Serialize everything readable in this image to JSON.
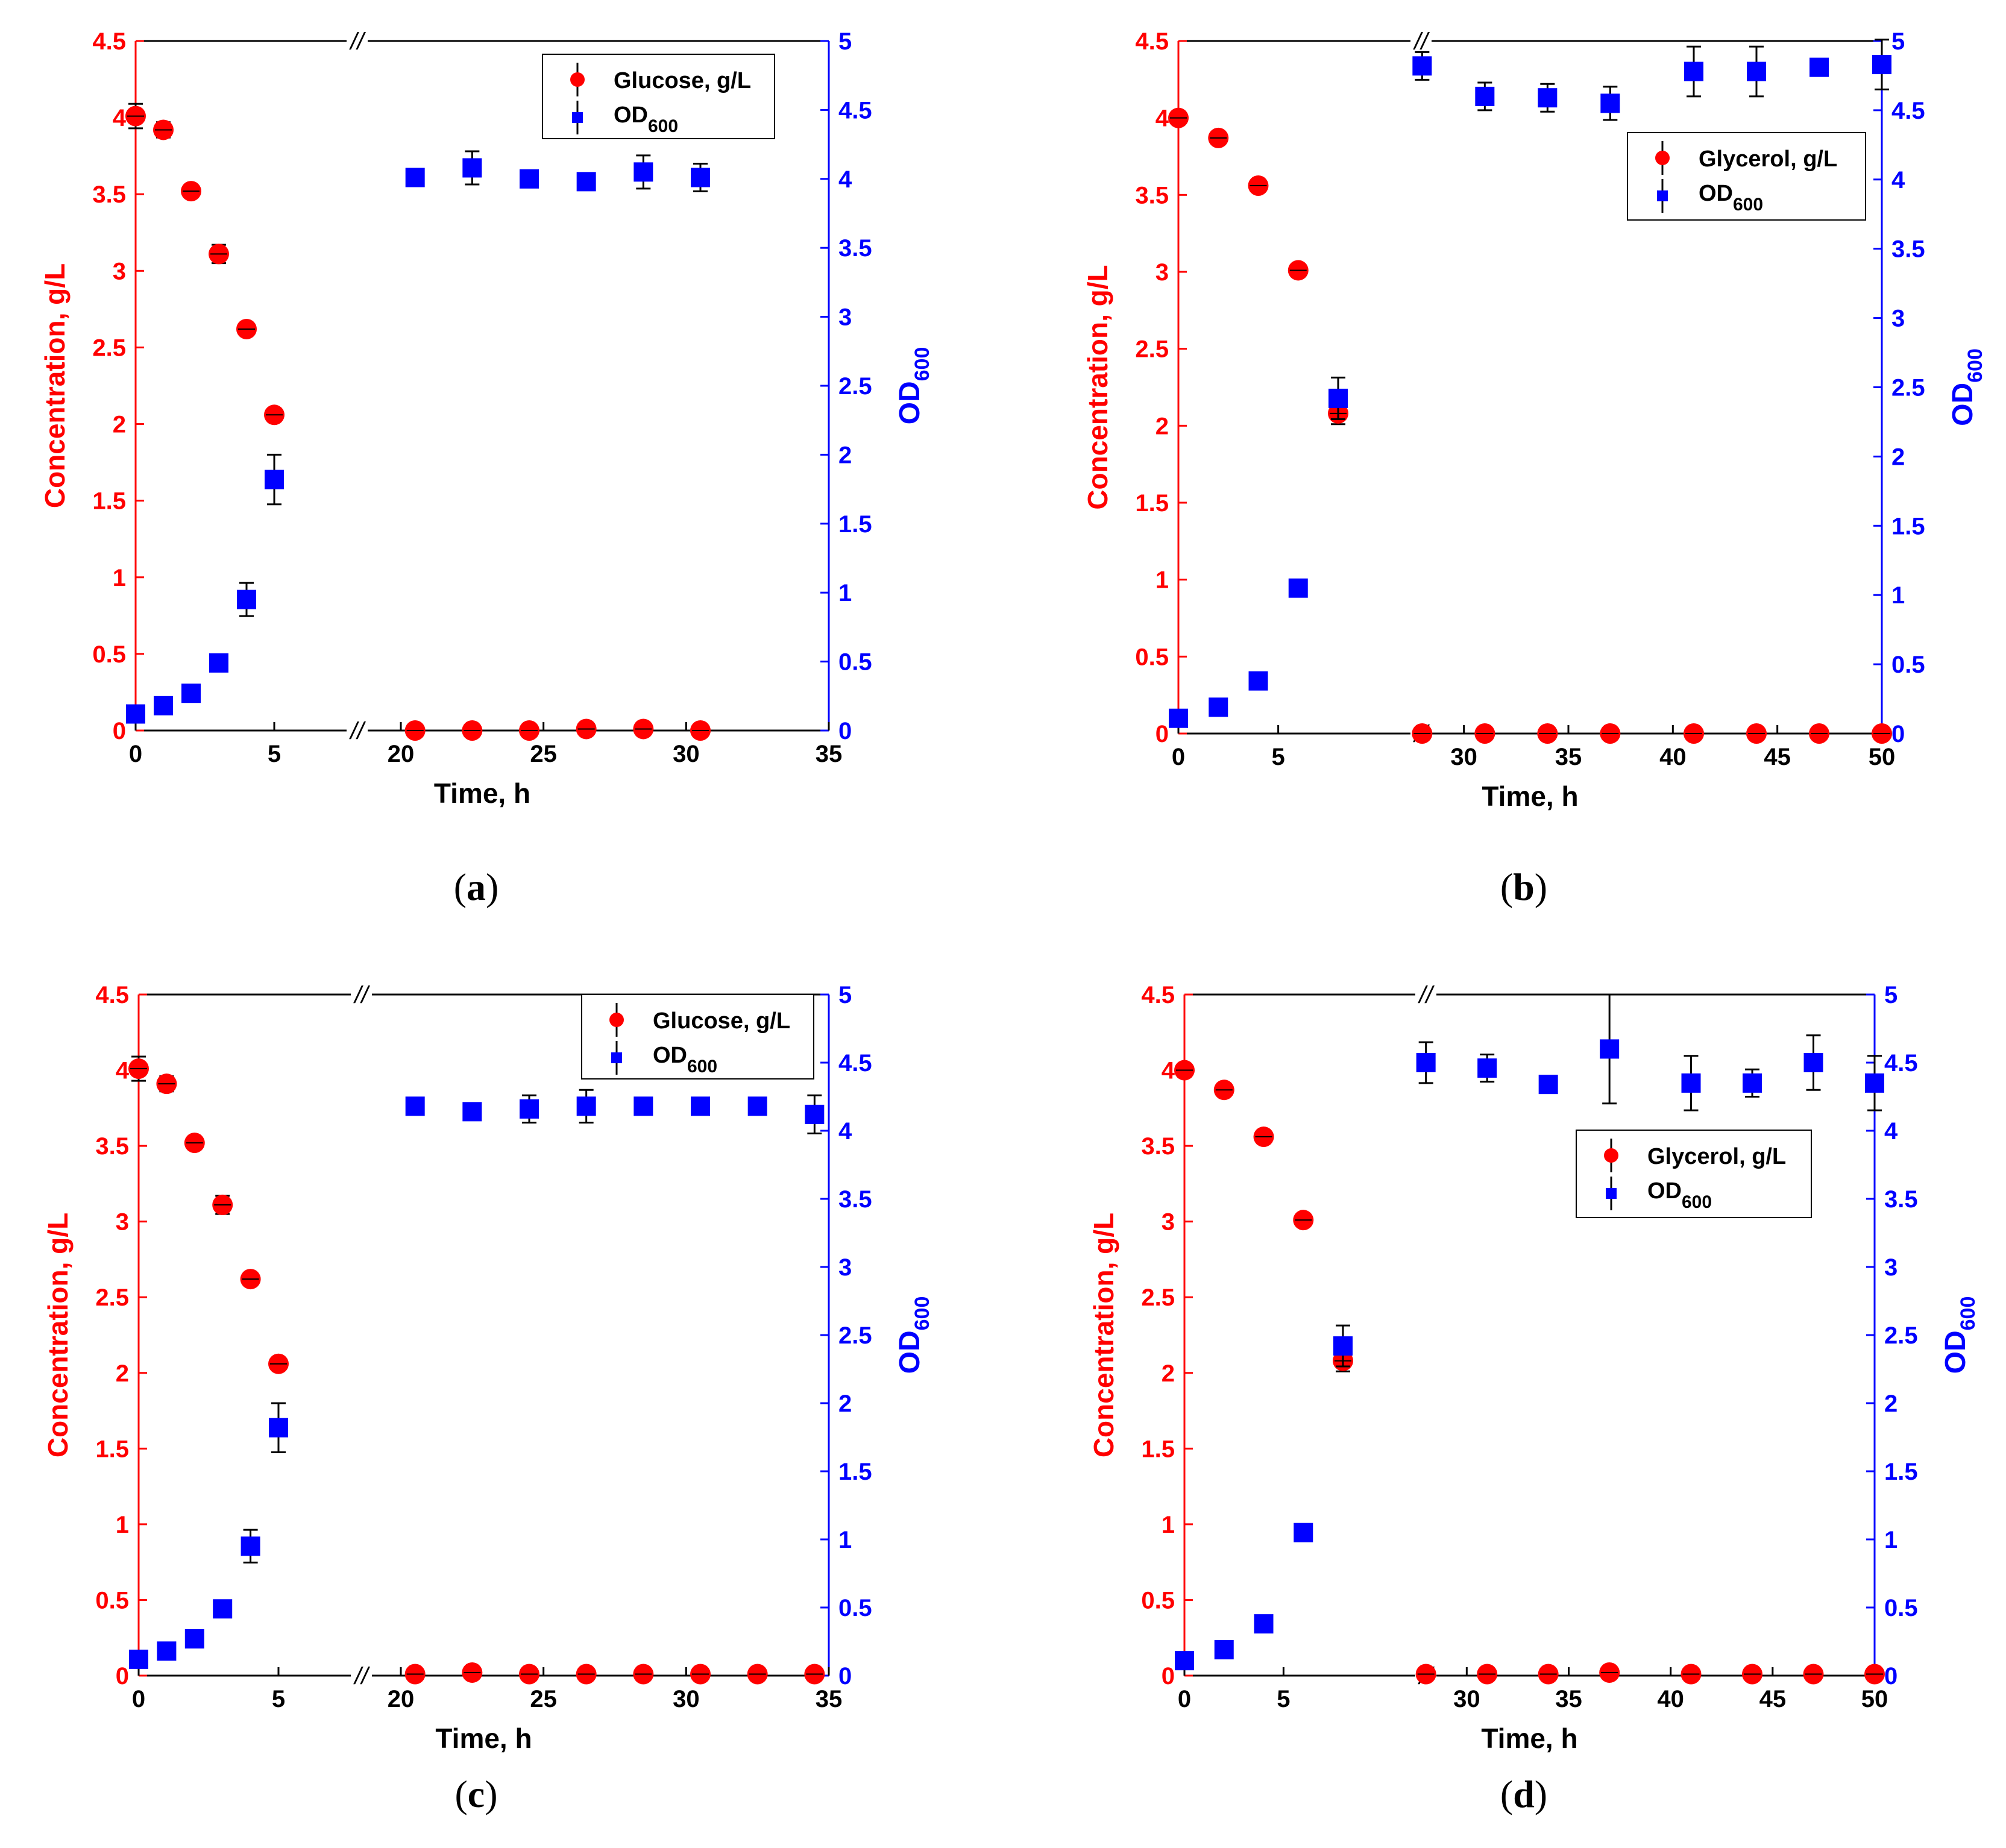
{
  "figure": {
    "break_mark": "//",
    "colors": {
      "concentration": "#ff0000",
      "od": "#0000ff",
      "axis": "#000000"
    }
  },
  "chart_data": [
    {
      "panel": "a",
      "type": "scatter",
      "xlabel": "Time, h",
      "ylabel_left": "Concentration, g/L",
      "ylabel_right_main": "OD",
      "ylabel_right_sub": "600",
      "x_ticks": [
        0,
        5,
        20,
        25,
        30,
        35
      ],
      "x_segments": [
        [
          0,
          5
        ],
        [
          20,
          35
        ]
      ],
      "left_ylim": [
        0,
        4.5
      ],
      "left_ticks": [
        0,
        0.5,
        1,
        1.5,
        2,
        2.5,
        3,
        3.5,
        4,
        4.5
      ],
      "right_ylim": [
        0,
        5
      ],
      "right_ticks": [
        0,
        0.5,
        1,
        1.5,
        2,
        2.5,
        3,
        3.5,
        4,
        4.5,
        5
      ],
      "legend_loc": "top-right",
      "series": [
        {
          "name": "Glucose, g/L",
          "legend_label": "Glucose, g/L",
          "axis": "left",
          "marker": "circle",
          "color": "#ff0000",
          "x": [
            0,
            1,
            2,
            3,
            4,
            5,
            20.5,
            22.5,
            24.5,
            26.5,
            28.5,
            30.5
          ],
          "y": [
            4.01,
            3.92,
            3.52,
            3.11,
            2.62,
            2.06,
            0.0,
            0.0,
            0.0,
            0.01,
            0.01,
            0.0
          ],
          "err": [
            0.08,
            0.05,
            0.04,
            0.06,
            0.04,
            0.03,
            0,
            0,
            0,
            0,
            0,
            0
          ]
        },
        {
          "name": "OD600",
          "legend_main": "OD",
          "legend_sub": "600",
          "axis": "right",
          "marker": "square",
          "color": "#0000ff",
          "x": [
            0,
            1,
            2,
            3,
            4,
            5,
            20.5,
            22.5,
            24.5,
            26.5,
            28.5,
            30.5
          ],
          "y": [
            0.12,
            0.18,
            0.27,
            0.49,
            0.95,
            1.82,
            4.01,
            4.08,
            4.0,
            3.98,
            4.05,
            4.01
          ],
          "err": [
            0.02,
            0.02,
            0.02,
            0.02,
            0.12,
            0.18,
            0.04,
            0.12,
            0.03,
            0.03,
            0.12,
            0.1
          ]
        }
      ]
    },
    {
      "panel": "b",
      "type": "scatter",
      "xlabel": "Time, h",
      "ylabel_left": "Concentration, g/L",
      "ylabel_right_main": "OD",
      "ylabel_right_sub": "600",
      "x_ticks": [
        0,
        5,
        30,
        35,
        40,
        45,
        50
      ],
      "x_segments": [
        [
          0,
          8
        ],
        [
          26,
          50
        ]
      ],
      "left_ylim": [
        0,
        4.5
      ],
      "left_ticks": [
        0,
        0.5,
        1,
        1.5,
        2,
        2.5,
        3,
        3.5,
        4,
        4.5
      ],
      "right_ylim": [
        0,
        5
      ],
      "right_ticks": [
        0,
        0.5,
        1,
        1.5,
        2,
        2.5,
        3,
        3.5,
        4,
        4.5,
        5
      ],
      "legend_loc": "upper-right",
      "series": [
        {
          "name": "Glycerol, g/L",
          "legend_label": "Glycerol, g/L",
          "axis": "left",
          "marker": "circle",
          "color": "#ff0000",
          "x": [
            0,
            2,
            4,
            6,
            8,
            28,
            31,
            34,
            37,
            41,
            44,
            47,
            50
          ],
          "y": [
            4.0,
            3.87,
            3.56,
            3.01,
            2.08,
            0.0,
            0.0,
            0.0,
            0.0,
            0.0,
            0.0,
            0.0,
            0.0
          ],
          "err": [
            0.02,
            0.02,
            0.03,
            0.03,
            0.07,
            0,
            0,
            0,
            0,
            0,
            0,
            0,
            0
          ]
        },
        {
          "name": "OD600",
          "legend_main": "OD",
          "legend_sub": "600",
          "axis": "right",
          "marker": "square",
          "color": "#0000ff",
          "x": [
            0,
            2,
            4,
            6,
            8,
            28,
            31,
            34,
            37,
            41,
            44,
            47,
            50
          ],
          "y": [
            0.11,
            0.19,
            0.38,
            1.05,
            2.42,
            4.82,
            4.6,
            4.59,
            4.55,
            4.78,
            4.78,
            4.81,
            4.83
          ],
          "err": [
            0.02,
            0.02,
            0.02,
            0.02,
            0.15,
            0.1,
            0.1,
            0.1,
            0.12,
            0.18,
            0.18,
            0.03,
            0.18
          ]
        }
      ]
    },
    {
      "panel": "c",
      "type": "scatter",
      "xlabel": "Time, h",
      "ylabel_left": "Concentration, g/L",
      "ylabel_right_main": "OD",
      "ylabel_right_sub": "600",
      "x_ticks": [
        0,
        5,
        20,
        25,
        30,
        35
      ],
      "x_segments": [
        [
          0,
          5
        ],
        [
          20,
          35
        ]
      ],
      "left_ylim": [
        0,
        4.5
      ],
      "left_ticks": [
        0,
        0.5,
        1,
        1.5,
        2,
        2.5,
        3,
        3.5,
        4,
        4.5
      ],
      "right_ylim": [
        0,
        5
      ],
      "right_ticks": [
        0,
        0.5,
        1,
        1.5,
        2,
        2.5,
        3,
        3.5,
        4,
        4.5,
        5
      ],
      "legend_loc": "top-right",
      "series": [
        {
          "name": "Glucose, g/L",
          "legend_label": "Glucose, g/L",
          "axis": "left",
          "marker": "circle",
          "color": "#ff0000",
          "x": [
            0,
            1,
            2,
            3,
            4,
            5,
            20.5,
            22.5,
            24.5,
            26.5,
            28.5,
            30.5,
            32.5,
            34.5
          ],
          "y": [
            4.01,
            3.91,
            3.52,
            3.11,
            2.62,
            2.06,
            0.01,
            0.02,
            0.01,
            0.01,
            0.01,
            0.01,
            0.01,
            0.01
          ],
          "err": [
            0.08,
            0.05,
            0.04,
            0.06,
            0.04,
            0.03,
            0,
            0,
            0,
            0,
            0,
            0,
            0,
            0
          ]
        },
        {
          "name": "OD600",
          "legend_main": "OD",
          "legend_sub": "600",
          "axis": "right",
          "marker": "square",
          "color": "#0000ff",
          "x": [
            0,
            1,
            2,
            3,
            4,
            5,
            20.5,
            22.5,
            24.5,
            26.5,
            28.5,
            30.5,
            32.5,
            34.5
          ],
          "y": [
            0.12,
            0.18,
            0.27,
            0.49,
            0.95,
            1.82,
            4.18,
            4.14,
            4.16,
            4.18,
            4.18,
            4.18,
            4.18,
            4.12
          ],
          "err": [
            0.02,
            0.02,
            0.02,
            0.02,
            0.12,
            0.18,
            0.04,
            0.03,
            0.1,
            0.12,
            0.03,
            0.06,
            0.06,
            0.14
          ]
        }
      ]
    },
    {
      "panel": "d",
      "type": "scatter",
      "xlabel": "Time, h",
      "ylabel_left": "Concentration, g/L",
      "ylabel_right_main": "OD",
      "ylabel_right_sub": "600",
      "x_ticks": [
        0,
        5,
        30,
        35,
        40,
        45,
        50
      ],
      "x_segments": [
        [
          0,
          8
        ],
        [
          26,
          50
        ]
      ],
      "left_ylim": [
        0,
        4.5
      ],
      "left_ticks": [
        0,
        0.5,
        1,
        1.5,
        2,
        2.5,
        3,
        3.5,
        4,
        4.5
      ],
      "right_ylim": [
        0,
        5
      ],
      "right_ticks": [
        0,
        0.5,
        1,
        1.5,
        2,
        2.5,
        3,
        3.5,
        4,
        4.5,
        5
      ],
      "legend_loc": "upper-right",
      "series": [
        {
          "name": "Glycerol, g/L",
          "legend_label": "Glycerol, g/L",
          "axis": "left",
          "marker": "circle",
          "color": "#ff0000",
          "x": [
            0,
            2,
            4,
            6,
            8,
            28,
            31,
            34,
            37,
            41,
            44,
            47,
            50
          ],
          "y": [
            4.0,
            3.87,
            3.56,
            3.01,
            2.08,
            0.01,
            0.01,
            0.01,
            0.02,
            0.01,
            0.01,
            0.01,
            0.01
          ],
          "err": [
            0.02,
            0.02,
            0.03,
            0.03,
            0.07,
            0,
            0,
            0,
            0,
            0,
            0,
            0,
            0
          ]
        },
        {
          "name": "OD600",
          "legend_main": "OD",
          "legend_sub": "600",
          "axis": "right",
          "marker": "square",
          "color": "#0000ff",
          "x": [
            0,
            2,
            4,
            6,
            8,
            28,
            31,
            34,
            37,
            41,
            44,
            47,
            50
          ],
          "y": [
            0.11,
            0.19,
            0.38,
            1.05,
            2.42,
            4.5,
            4.46,
            4.34,
            4.6,
            4.35,
            4.35,
            4.5,
            4.35
          ],
          "err": [
            0.02,
            0.02,
            0.02,
            0.02,
            0.15,
            0.15,
            0.1,
            0.02,
            0.4,
            0.2,
            0.1,
            0.2,
            0.2
          ]
        }
      ]
    }
  ]
}
